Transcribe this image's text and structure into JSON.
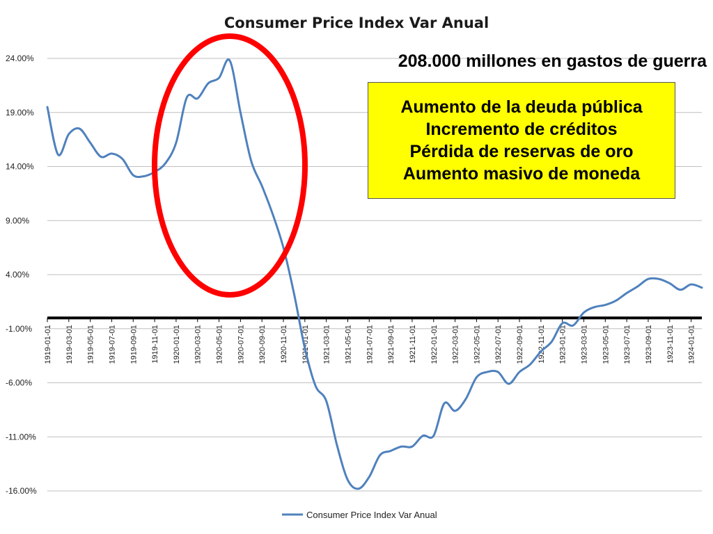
{
  "chart_data": {
    "type": "line",
    "title": "Consumer Price Index Var Anual",
    "xlabel": "",
    "ylabel": "",
    "ylim": [
      -16,
      24
    ],
    "yticks": [
      "24.00%",
      "19.00%",
      "14.00%",
      "9.00%",
      "4.00%",
      "-1.00%",
      "-6.00%",
      "-11.00%",
      "-16.00%"
    ],
    "ytick_values": [
      24,
      19,
      14,
      9,
      4,
      -1,
      -6,
      -11,
      -16
    ],
    "reference_line_y": 0,
    "grid": true,
    "legend_position": "bottom",
    "xticks": [
      "1919-01-01",
      "1919-03-01",
      "1919-05-01",
      "1919-07-01",
      "1919-09-01",
      "1919-11-01",
      "1920-01-01",
      "1920-03-01",
      "1920-05-01",
      "1920-07-01",
      "1920-09-01",
      "1920-11-01",
      "1921-01-01",
      "1921-03-01",
      "1921-05-01",
      "1921-07-01",
      "1921-09-01",
      "1921-11-01",
      "1922-01-01",
      "1922-03-01",
      "1922-05-01",
      "1922-07-01",
      "1922-09-01",
      "1922-11-01",
      "1923-01-01",
      "1923-03-01",
      "1923-05-01",
      "1923-07-01",
      "1923-09-01",
      "1923-11-01",
      "1924-01-01"
    ],
    "series": [
      {
        "name": "Consumer Price Index Var Anual",
        "color": "#4f81bd",
        "x": [
          "1919-01-01",
          "1919-02-01",
          "1919-03-01",
          "1919-04-01",
          "1919-05-01",
          "1919-06-01",
          "1919-07-01",
          "1919-08-01",
          "1919-09-01",
          "1919-10-01",
          "1919-11-01",
          "1919-12-01",
          "1920-01-01",
          "1920-02-01",
          "1920-03-01",
          "1920-04-01",
          "1920-05-01",
          "1920-06-01",
          "1920-07-01",
          "1920-08-01",
          "1920-09-01",
          "1920-10-01",
          "1920-11-01",
          "1920-12-01",
          "1921-01-01",
          "1921-02-01",
          "1921-03-01",
          "1921-04-01",
          "1921-05-01",
          "1921-06-01",
          "1921-07-01",
          "1921-08-01",
          "1921-09-01",
          "1921-10-01",
          "1921-11-01",
          "1921-12-01",
          "1922-01-01",
          "1922-02-01",
          "1922-03-01",
          "1922-04-01",
          "1922-05-01",
          "1922-06-01",
          "1922-07-01",
          "1922-08-01",
          "1922-09-01",
          "1922-10-01",
          "1922-11-01",
          "1922-12-01",
          "1923-01-01",
          "1923-02-01",
          "1923-03-01",
          "1923-04-01",
          "1923-05-01",
          "1923-06-01",
          "1923-07-01",
          "1923-08-01",
          "1923-09-01",
          "1923-10-01",
          "1923-11-01",
          "1923-12-01",
          "1924-01-01",
          "1924-02-01"
        ],
        "values": [
          19.5,
          15.1,
          17.0,
          17.5,
          16.2,
          14.9,
          15.2,
          14.7,
          13.2,
          13.1,
          13.5,
          14.3,
          16.2,
          20.4,
          20.3,
          21.7,
          22.2,
          23.8,
          19.0,
          14.5,
          12.2,
          9.6,
          6.5,
          2.2,
          -2.8,
          -6.3,
          -7.7,
          -11.8,
          -15.0,
          -15.8,
          -14.7,
          -12.7,
          -12.3,
          -11.9,
          -11.9,
          -10.9,
          -10.9,
          -7.9,
          -8.6,
          -7.5,
          -5.5,
          -5.0,
          -5.0,
          -6.1,
          -5.0,
          -4.3,
          -3.1,
          -2.2,
          -0.5,
          -0.7,
          0.5,
          1.0,
          1.2,
          1.6,
          2.3,
          2.9,
          3.6,
          3.6,
          3.2,
          2.6,
          3.1,
          2.8
        ]
      }
    ]
  },
  "annotations": {
    "top_text": "208.000 millones en gastos de guerra",
    "box_lines": [
      "Aumento de la deuda pública",
      "Incremento de créditos",
      "Pérdida de reservas de oro",
      "Aumento masivo de moneda"
    ],
    "box_color": "#ffff00",
    "circle_color": "#ff0000"
  }
}
